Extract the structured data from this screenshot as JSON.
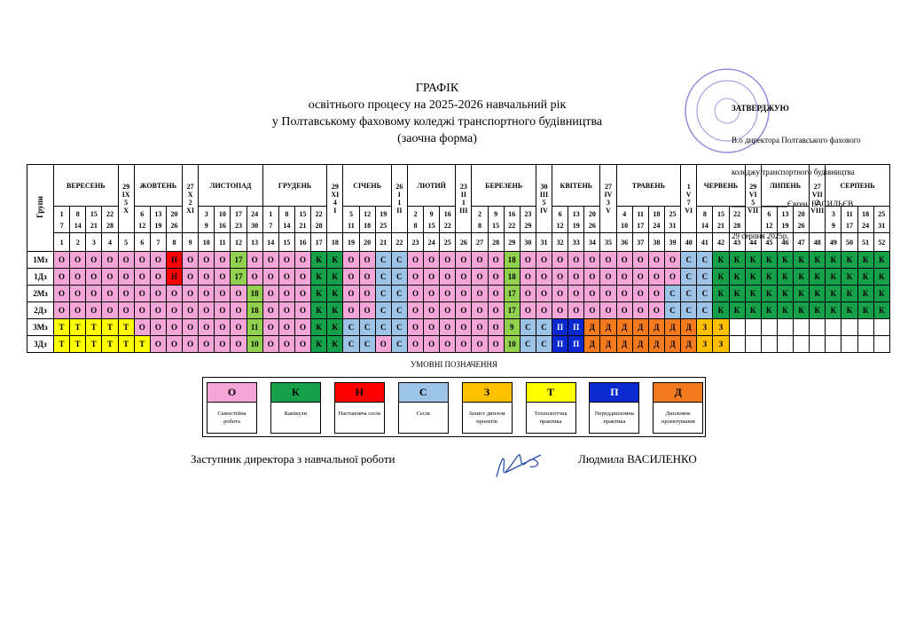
{
  "header": {
    "title": "ГРАФІК",
    "lines": [
      "освітнього процесу на 2025-2026 навчальний рік",
      "у Полтавському фаховому коледжі транспортного будівництва",
      "(заочна форма)"
    ]
  },
  "approval": {
    "lines": [
      "ЗАТВЕРДЖУЮ",
      "В.о директора Полтавського фахового",
      "коледжу транспортного будівництва",
      "______________Євген  ВАСИЛЬЄВ",
      "29 серпня 2025р."
    ]
  },
  "table": {
    "group_header": "Групи",
    "months": [
      {
        "name": "ВЕРЕСЕНЬ",
        "dates": [
          [
            1,
            7
          ],
          [
            8,
            14
          ],
          [
            15,
            21
          ],
          [
            22,
            28
          ]
        ]
      },
      {
        "transition": [
          "29",
          "IX",
          "5",
          "X"
        ]
      },
      {
        "name": "ЖОВТЕНЬ",
        "dates": [
          [
            6,
            12
          ],
          [
            13,
            19
          ],
          [
            20,
            26
          ]
        ]
      },
      {
        "transition": [
          "27",
          "X",
          "2",
          "XI"
        ]
      },
      {
        "name": "ЛИСТОПАД",
        "dates": [
          [
            3,
            9
          ],
          [
            10,
            16
          ],
          [
            17,
            23
          ],
          [
            24,
            30
          ]
        ]
      },
      {
        "name": "ГРУДЕНЬ",
        "dates": [
          [
            1,
            7
          ],
          [
            8,
            14
          ],
          [
            15,
            21
          ],
          [
            22,
            28
          ]
        ]
      },
      {
        "transition": [
          "29",
          "XI",
          "4",
          "I"
        ]
      },
      {
        "name": "СІЧЕНЬ",
        "dates": [
          [
            5,
            11
          ],
          [
            12,
            18
          ],
          [
            19,
            25
          ]
        ]
      },
      {
        "transition": [
          "26",
          "I",
          "1",
          "II"
        ]
      },
      {
        "name": "ЛЮТИЙ",
        "dates": [
          [
            2,
            8
          ],
          [
            9,
            15
          ],
          [
            16,
            22
          ]
        ]
      },
      {
        "transition": [
          "23",
          "II",
          "1",
          "III"
        ]
      },
      {
        "name": "БЕРЕЗЕНЬ",
        "dates": [
          [
            2,
            8
          ],
          [
            9,
            15
          ],
          [
            16,
            22
          ],
          [
            23,
            29
          ]
        ]
      },
      {
        "transition": [
          "30",
          "III",
          "5",
          "IV"
        ]
      },
      {
        "name": "КВІТЕНЬ",
        "dates": [
          [
            6,
            12
          ],
          [
            13,
            19
          ],
          [
            20,
            26
          ]
        ]
      },
      {
        "transition": [
          "27",
          "IV",
          "3",
          "V"
        ]
      },
      {
        "name": "ТРАВЕНЬ",
        "dates": [
          [
            4,
            10
          ],
          [
            11,
            17
          ],
          [
            18,
            24
          ],
          [
            25,
            31
          ]
        ]
      },
      {
        "transition": [
          "1",
          "V",
          "7",
          "VI"
        ]
      },
      {
        "name": "ЧЕРВЕНЬ",
        "dates": [
          [
            8,
            14
          ],
          [
            15,
            21
          ],
          [
            22,
            28
          ]
        ]
      },
      {
        "transition": [
          "29",
          "VI",
          "5",
          "VII"
        ]
      },
      {
        "name": "ЛИПЕНЬ",
        "dates": [
          [
            6,
            12
          ],
          [
            13,
            19
          ],
          [
            20,
            26
          ]
        ]
      },
      {
        "transition": [
          "27",
          "VII",
          "2",
          "VIII"
        ]
      },
      {
        "name": "СЕРПЕНЬ",
        "dates": [
          [
            3,
            9
          ],
          [
            11,
            17
          ],
          [
            18,
            24
          ],
          [
            25,
            31
          ]
        ]
      }
    ],
    "week_numbers": [
      1,
      2,
      3,
      4,
      5,
      6,
      7,
      8,
      9,
      10,
      11,
      12,
      13,
      14,
      15,
      16,
      17,
      18,
      19,
      20,
      21,
      22,
      23,
      24,
      25,
      26,
      27,
      28,
      29,
      30,
      31,
      32,
      33,
      34,
      35,
      36,
      37,
      38,
      39,
      40,
      41,
      42,
      43,
      44,
      45,
      46,
      47,
      48,
      49,
      50,
      51,
      52
    ],
    "rows": [
      {
        "group": "1Мз",
        "cells": [
          "О",
          "О",
          "О",
          "О",
          "О",
          "О",
          "О",
          "Н",
          "О",
          "О",
          "О",
          17,
          "О",
          "О",
          "О",
          "О",
          "К",
          "К",
          "О",
          "О",
          "С",
          "С",
          "О",
          "О",
          "О",
          "О",
          "О",
          "О",
          18,
          "О",
          "О",
          "О",
          "О",
          "О",
          "О",
          "О",
          "О",
          "О",
          "О",
          "С",
          "С",
          "К",
          "К",
          "К",
          "К",
          "К",
          "К",
          "К",
          "К",
          "К",
          "К",
          "К"
        ]
      },
      {
        "group": "1Дз",
        "cells": [
          "О",
          "О",
          "О",
          "О",
          "О",
          "О",
          "О",
          "Н",
          "О",
          "О",
          "О",
          17,
          "О",
          "О",
          "О",
          "О",
          "К",
          "К",
          "О",
          "О",
          "С",
          "С",
          "О",
          "О",
          "О",
          "О",
          "О",
          "О",
          18,
          "О",
          "О",
          "О",
          "О",
          "О",
          "О",
          "О",
          "О",
          "О",
          "О",
          "С",
          "С",
          "К",
          "К",
          "К",
          "К",
          "К",
          "К",
          "К",
          "К",
          "К",
          "К",
          "К"
        ]
      },
      {
        "group": "2Мз",
        "cells": [
          "О",
          "О",
          "О",
          "О",
          "О",
          "О",
          "О",
          "О",
          "О",
          "О",
          "О",
          "О",
          18,
          "О",
          "О",
          "О",
          "К",
          "К",
          "О",
          "О",
          "С",
          "С",
          "О",
          "О",
          "О",
          "О",
          "О",
          "О",
          17,
          "О",
          "О",
          "О",
          "О",
          "О",
          "О",
          "О",
          "О",
          "О",
          "С",
          "С",
          "С",
          "К",
          "К",
          "К",
          "К",
          "К",
          "К",
          "К",
          "К",
          "К",
          "К",
          "К"
        ]
      },
      {
        "group": "2Дз",
        "cells": [
          "О",
          "О",
          "О",
          "О",
          "О",
          "О",
          "О",
          "О",
          "О",
          "О",
          "О",
          "О",
          18,
          "О",
          "О",
          "О",
          "К",
          "К",
          "О",
          "О",
          "С",
          "С",
          "О",
          "О",
          "О",
          "О",
          "О",
          "О",
          17,
          "О",
          "О",
          "О",
          "О",
          "О",
          "О",
          "О",
          "О",
          "О",
          "С",
          "С",
          "С",
          "К",
          "К",
          "К",
          "К",
          "К",
          "К",
          "К",
          "К",
          "К",
          "К",
          "К"
        ]
      },
      {
        "group": "3Мз",
        "cells": [
          "Т",
          "Т",
          "Т",
          "Т",
          "Т",
          "О",
          "О",
          "О",
          "О",
          "О",
          "О",
          "О",
          11,
          "О",
          "О",
          "О",
          "К",
          "К",
          "С",
          "С",
          "С",
          "С",
          "О",
          "О",
          "О",
          "О",
          "О",
          "О",
          9,
          "С",
          "С",
          "П",
          "П",
          "Д",
          "Д",
          "Д",
          "Д",
          "Д",
          "Д",
          "Д",
          "З",
          "З",
          null,
          null,
          null,
          null,
          null,
          null,
          null,
          null,
          null,
          null
        ]
      },
      {
        "group": "3Дз",
        "cells": [
          "Т",
          "Т",
          "Т",
          "Т",
          "Т",
          "Т",
          "О",
          "О",
          "О",
          "О",
          "О",
          "О",
          10,
          "О",
          "О",
          "О",
          "К",
          "К",
          "С",
          "С",
          "О",
          "С",
          "О",
          "О",
          "О",
          "О",
          "О",
          "О",
          10,
          "С",
          "С",
          "П",
          "П",
          "Д",
          "Д",
          "Д",
          "Д",
          "Д",
          "Д",
          "Д",
          "З",
          "З",
          null,
          null,
          null,
          null,
          null,
          null,
          null,
          null,
          null,
          null
        ]
      }
    ]
  },
  "legend": {
    "title": "УМОВНІ ПОЗНАЧЕННЯ",
    "items": [
      {
        "code": "О",
        "label": "Самостійна робота",
        "color": "#f4a6d8"
      },
      {
        "code": "К",
        "label": "Канікули",
        "color": "#17a04a"
      },
      {
        "code": "Н",
        "label": "Настановча сесія",
        "color": "#ff0000"
      },
      {
        "code": "С",
        "label": "Сесія",
        "color": "#9dc3e6"
      },
      {
        "code": "З",
        "label": "Захист диплом проектів",
        "color": "#ffc000"
      },
      {
        "code": "Т",
        "label": "Технологічна практика",
        "color": "#ffff00"
      },
      {
        "code": "П",
        "label": "Переддипломна практика",
        "color": "#0a2ad0"
      },
      {
        "code": "Д",
        "label": "Дипломне проектування",
        "color": "#f47a20"
      }
    ]
  },
  "footer": {
    "position": "Заступник директора з навчальної роботи",
    "name": "Людмила ВАСИЛЕНКО"
  }
}
